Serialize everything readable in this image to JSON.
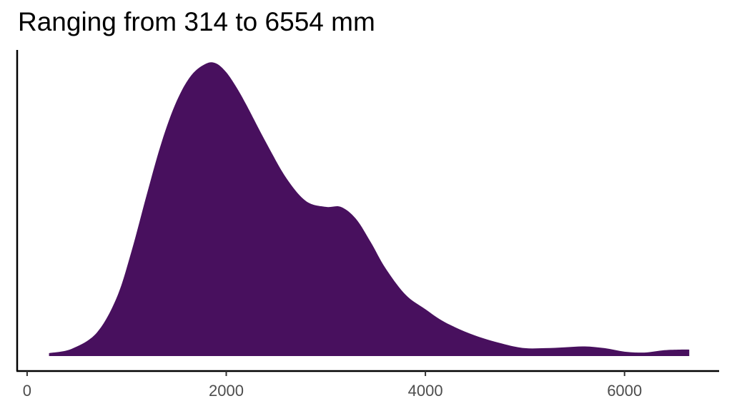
{
  "chart_data": {
    "type": "area",
    "title": "Ranging from 314 to 6554 mm",
    "xlabel": "",
    "ylabel": "",
    "xlim": [
      -100,
      6950
    ],
    "ylim": [
      0,
      1.05
    ],
    "x_ticks": [
      0,
      2000,
      4000,
      6000
    ],
    "x_tick_labels": [
      "0",
      "2000",
      "4000",
      "6000"
    ],
    "y_ticks": [],
    "grid": false,
    "legend": "none",
    "fill_color": "#48105e",
    "series": [
      {
        "x": [
          220,
          450,
          700,
          900,
          1050,
          1200,
          1350,
          1500,
          1650,
          1800,
          1900,
          2000,
          2100,
          2200,
          2400,
          2600,
          2800,
          3000,
          3150,
          3300,
          3450,
          3600,
          3800,
          4000,
          4200,
          4500,
          4800,
          5000,
          5200,
          5400,
          5600,
          5800,
          6000,
          6200,
          6400,
          6554,
          6650
        ],
        "y": [
          0.01,
          0.025,
          0.08,
          0.2,
          0.36,
          0.55,
          0.73,
          0.87,
          0.96,
          1.0,
          1.0,
          0.97,
          0.92,
          0.86,
          0.73,
          0.61,
          0.53,
          0.51,
          0.51,
          0.47,
          0.39,
          0.3,
          0.21,
          0.16,
          0.115,
          0.07,
          0.04,
          0.027,
          0.027,
          0.03,
          0.033,
          0.027,
          0.015,
          0.012,
          0.02,
          0.022,
          0.022
        ]
      }
    ]
  }
}
